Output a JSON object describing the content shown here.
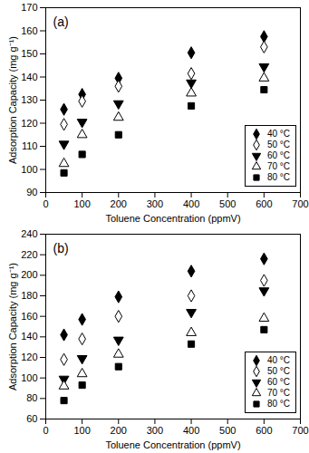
{
  "chart_data": [
    {
      "type": "scatter",
      "title": "(a)",
      "x_label": "Toluene Concentration (ppmV)",
      "y_label": "Adsorption Capacity (mg g⁻¹)",
      "x": [
        50,
        100,
        200,
        400,
        600
      ],
      "xlim": [
        0,
        700
      ],
      "xticks": [
        0,
        100,
        200,
        300,
        400,
        500,
        600,
        700
      ],
      "ylim": [
        90,
        170
      ],
      "yticks": [
        90,
        100,
        110,
        120,
        130,
        140,
        150,
        160,
        170
      ],
      "legend": "bottom-right",
      "series": [
        {
          "name": "40 °C",
          "color": "#000000",
          "marker": "diamond",
          "values": [
            126,
            132.5,
            139.5,
            150.5,
            157.5
          ]
        },
        {
          "name": "50 °C",
          "color": "#000000",
          "marker": "diamond-open",
          "values": [
            119.5,
            129.5,
            136,
            141.5,
            153
          ]
        },
        {
          "name": "60 °C",
          "color": "#000000",
          "marker": "triangle-down",
          "values": [
            111,
            120.5,
            128.5,
            137.5,
            144.5
          ]
        },
        {
          "name": "70 °C",
          "color": "#000000",
          "marker": "triangle-open",
          "values": [
            102.5,
            115,
            122.5,
            133,
            139.5
          ]
        },
        {
          "name": "80 °C",
          "color": "#000000",
          "marker": "square",
          "values": [
            98.5,
            106.5,
            115,
            127.5,
            134.5
          ]
        }
      ]
    },
    {
      "type": "scatter",
      "title": "(b)",
      "x_label": "Toluene Concentration (ppmV)",
      "y_label": "Adsorption Capacity (mg g⁻¹)",
      "x": [
        50,
        100,
        200,
        400,
        600
      ],
      "xlim": [
        0,
        700
      ],
      "xticks": [
        0,
        100,
        200,
        300,
        400,
        500,
        600,
        700
      ],
      "ylim": [
        60,
        240
      ],
      "yticks": [
        60,
        80,
        100,
        120,
        140,
        160,
        180,
        200,
        220,
        240
      ],
      "legend": "bottom-right",
      "series": [
        {
          "name": "40 °C",
          "color": "#000000",
          "marker": "diamond",
          "values": [
            142,
            157,
            179,
            204,
            216
          ]
        },
        {
          "name": "50 °C",
          "color": "#000000",
          "marker": "diamond-open",
          "values": [
            118,
            138,
            160,
            180,
            195
          ]
        },
        {
          "name": "60 °C",
          "color": "#000000",
          "marker": "triangle-down",
          "values": [
            99,
            119,
            137,
            164,
            185
          ]
        },
        {
          "name": "70 °C",
          "color": "#000000",
          "marker": "triangle-open",
          "values": [
            92,
            104,
            123,
            144,
            158
          ]
        },
        {
          "name": "80 °C",
          "color": "#000000",
          "marker": "square",
          "values": [
            78,
            93,
            111,
            133,
            147
          ]
        }
      ]
    }
  ]
}
